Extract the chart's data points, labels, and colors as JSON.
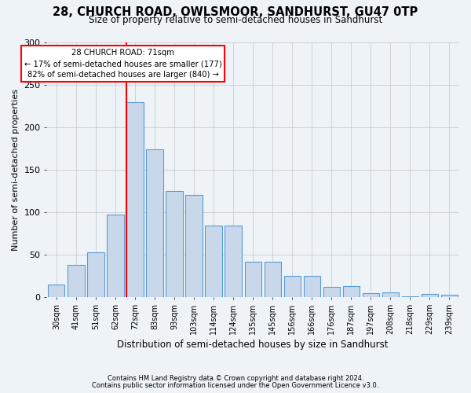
{
  "title": "28, CHURCH ROAD, OWLSMOOR, SANDHURST, GU47 0TP",
  "subtitle": "Size of property relative to semi-detached houses in Sandhurst",
  "xlabel": "Distribution of semi-detached houses by size in Sandhurst",
  "ylabel": "Number of semi-detached properties",
  "bar_color": "#c8d8ea",
  "bar_edge_color": "#5b9bd5",
  "categories": [
    "30sqm",
    "41sqm",
    "51sqm",
    "62sqm",
    "72sqm",
    "83sqm",
    "93sqm",
    "103sqm",
    "114sqm",
    "124sqm",
    "135sqm",
    "145sqm",
    "156sqm",
    "166sqm",
    "176sqm",
    "187sqm",
    "197sqm",
    "208sqm",
    "218sqm",
    "229sqm",
    "239sqm"
  ],
  "values": [
    15,
    38,
    53,
    97,
    230,
    174,
    125,
    120,
    84,
    84,
    42,
    42,
    25,
    25,
    12,
    13,
    5,
    6,
    1,
    4,
    3
  ],
  "annotation_text": "28 CHURCH ROAD: 71sqm\n← 17% of semi-detached houses are smaller (177)\n82% of semi-detached houses are larger (840) →",
  "vline_color": "red",
  "vline_x_index": 4,
  "ylim": [
    0,
    300
  ],
  "yticks": [
    0,
    50,
    100,
    150,
    200,
    250,
    300
  ],
  "footer1": "Contains HM Land Registry data © Crown copyright and database right 2024.",
  "footer2": "Contains public sector information licensed under the Open Government Licence v3.0.",
  "bg_color": "#eef3f8",
  "grid_color": "#cccccc"
}
